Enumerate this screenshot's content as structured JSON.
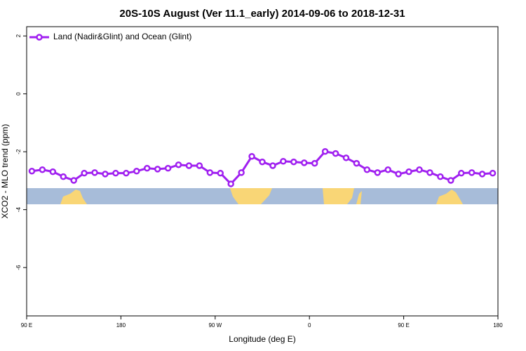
{
  "chart_data": {
    "type": "line",
    "title": "20S-10S August (Ver 11.1_early)   2014-09-06 to 2018-12-31",
    "xlabel": "Longitude (deg E)",
    "ylabel": "XCO2 - MLO trend (ppm)",
    "x": [
      95,
      105,
      115,
      125,
      135,
      145,
      155,
      165,
      175,
      185,
      195,
      205,
      215,
      225,
      235,
      245,
      255,
      265,
      275,
      285,
      295,
      305,
      315,
      325,
      335,
      345,
      355,
      365,
      375,
      385,
      395,
      405,
      415,
      425,
      435,
      445,
      455,
      465,
      475,
      485,
      495,
      505,
      515,
      525,
      535
    ],
    "series": [
      {
        "name": "Land (Nadir&Glint) and Ocean (Glint)",
        "color": "#a020f0",
        "values": [
          -2.67,
          -2.62,
          -2.69,
          -2.86,
          -2.99,
          -2.74,
          -2.72,
          -2.77,
          -2.74,
          -2.74,
          -2.67,
          -2.57,
          -2.6,
          -2.57,
          -2.45,
          -2.48,
          -2.48,
          -2.72,
          -2.74,
          -3.11,
          -2.72,
          -2.16,
          -2.35,
          -2.48,
          -2.33,
          -2.35,
          -2.38,
          -2.4,
          -1.99,
          -2.06,
          -2.21,
          -2.4,
          -2.62,
          -2.72,
          -2.62,
          -2.77,
          -2.69,
          -2.62,
          -2.72,
          -2.86,
          -2.99,
          -2.74,
          -2.72,
          -2.77,
          -2.74
        ]
      }
    ],
    "xlim": [
      90,
      540
    ],
    "xticks": [
      {
        "value": 90,
        "label": "90 E"
      },
      180,
      {
        "value": 270,
        "label": "90 W"
      },
      {
        "value": 360,
        "label": "0"
      },
      {
        "value": 450,
        "label": "90 E"
      },
      {
        "value": 540,
        "label": "180"
      }
    ],
    "ylim": [
      -7.67,
      2.32
    ],
    "yticks": [
      2,
      0,
      -2,
      -4,
      -6
    ],
    "legend": "top-left"
  }
}
